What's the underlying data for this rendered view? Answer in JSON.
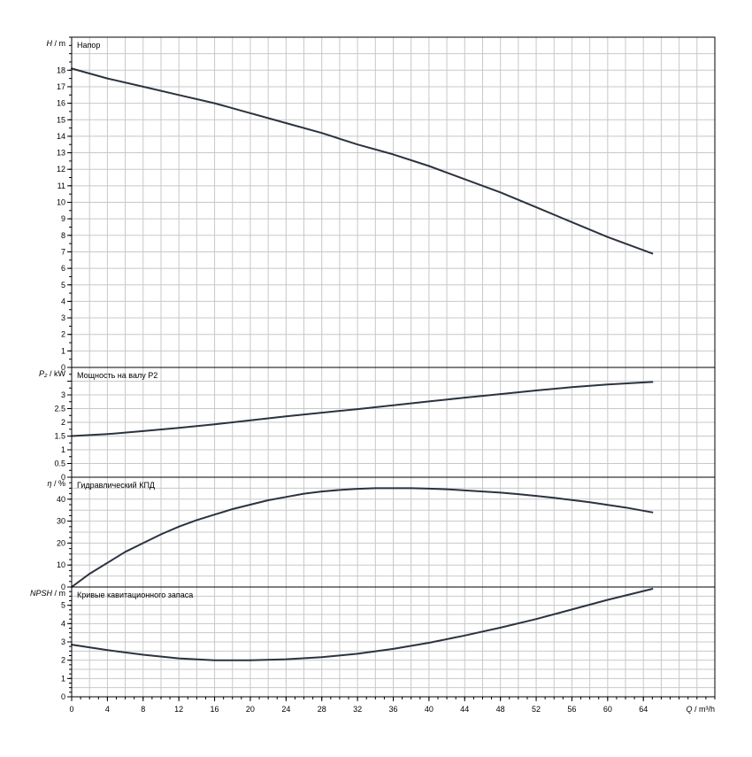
{
  "chart_data": {
    "type": "line",
    "x_axis": {
      "label_symbol": "Q",
      "label_unit": "m³/h",
      "range": [
        0,
        72
      ],
      "ticks": [
        0,
        4,
        8,
        12,
        16,
        20,
        24,
        28,
        32,
        36,
        40,
        44,
        48,
        52,
        56,
        60,
        64
      ],
      "minor_step": 1,
      "grid_step": 2
    },
    "panels": [
      {
        "id": "head",
        "title": "Напор",
        "y_symbol": "H",
        "y_unit": "m",
        "y_range": [
          0,
          20
        ],
        "y_ticks": [
          0,
          1,
          2,
          3,
          4,
          5,
          6,
          7,
          8,
          9,
          10,
          11,
          12,
          13,
          14,
          15,
          16,
          17,
          18
        ],
        "y_grid_step": 1,
        "series": [
          {
            "x": [
              0,
              4,
              8,
              12,
              16,
              20,
              24,
              28,
              32,
              36,
              40,
              44,
              48,
              52,
              56,
              60,
              65
            ],
            "y": [
              18.1,
              17.5,
              17.0,
              16.5,
              16.0,
              15.4,
              14.8,
              14.2,
              13.5,
              12.9,
              12.2,
              11.4,
              10.6,
              9.7,
              8.8,
              7.9,
              6.9
            ]
          }
        ]
      },
      {
        "id": "power",
        "title": "Мощность на валу P2",
        "y_symbol": "P₂",
        "y_unit": "kW",
        "y_range": [
          0,
          4
        ],
        "y_ticks": [
          0,
          0.5,
          1,
          1.5,
          2,
          2.5,
          3,
          3.5
        ],
        "y_tick_labels": [
          "0",
          "0.5",
          "1",
          "1.5",
          "2",
          "2.5",
          "3",
          ""
        ],
        "y_grid_step": 0.5,
        "series": [
          {
            "x": [
              0,
              4,
              8,
              12,
              16,
              20,
              24,
              28,
              32,
              36,
              40,
              44,
              48,
              52,
              56,
              60,
              65
            ],
            "y": [
              1.5,
              1.57,
              1.68,
              1.8,
              1.93,
              2.07,
              2.22,
              2.35,
              2.48,
              2.62,
              2.76,
              2.9,
              3.03,
              3.16,
              3.28,
              3.38,
              3.47
            ]
          }
        ]
      },
      {
        "id": "efficiency",
        "title": "Гидравлический КПД",
        "y_symbol": "η",
        "y_unit": "%",
        "y_range": [
          0,
          50
        ],
        "y_ticks": [
          0,
          10,
          20,
          30,
          40
        ],
        "y_grid_step": 5,
        "series": [
          {
            "x": [
              0,
              2,
              4,
              6,
              8,
              10,
              12,
              14,
              16,
              18,
              20,
              22,
              24,
              26,
              28,
              30,
              32,
              34,
              36,
              38,
              40,
              42,
              44,
              46,
              48,
              50,
              52,
              54,
              56,
              58,
              60,
              62,
              65
            ],
            "y": [
              0,
              6,
              11,
              16,
              20,
              24,
              27.5,
              30.5,
              33,
              35.5,
              37.5,
              39.5,
              41,
              42.5,
              43.5,
              44.2,
              44.7,
              45,
              45,
              45,
              44.8,
              44.5,
              44,
              43.5,
              43,
              42.3,
              41.5,
              40.6,
              39.6,
              38.6,
              37.4,
              36.2,
              34
            ]
          }
        ]
      },
      {
        "id": "npsh",
        "title": "Кривые кавитационного запаса",
        "y_symbol": "NPSH",
        "y_unit": "m",
        "y_range": [
          0,
          6
        ],
        "y_ticks": [
          0,
          1,
          2,
          3,
          4,
          5
        ],
        "y_grid_step": 0.5,
        "series": [
          {
            "x": [
              0,
              4,
              8,
              12,
              16,
              20,
              24,
              28,
              32,
              36,
              40,
              44,
              48,
              52,
              56,
              60,
              65
            ],
            "y": [
              2.85,
              2.55,
              2.3,
              2.1,
              2.0,
              2.0,
              2.05,
              2.17,
              2.35,
              2.62,
              2.95,
              3.35,
              3.78,
              4.25,
              4.77,
              5.3,
              5.9
            ]
          }
        ]
      }
    ],
    "grid": true,
    "legend": "none"
  }
}
